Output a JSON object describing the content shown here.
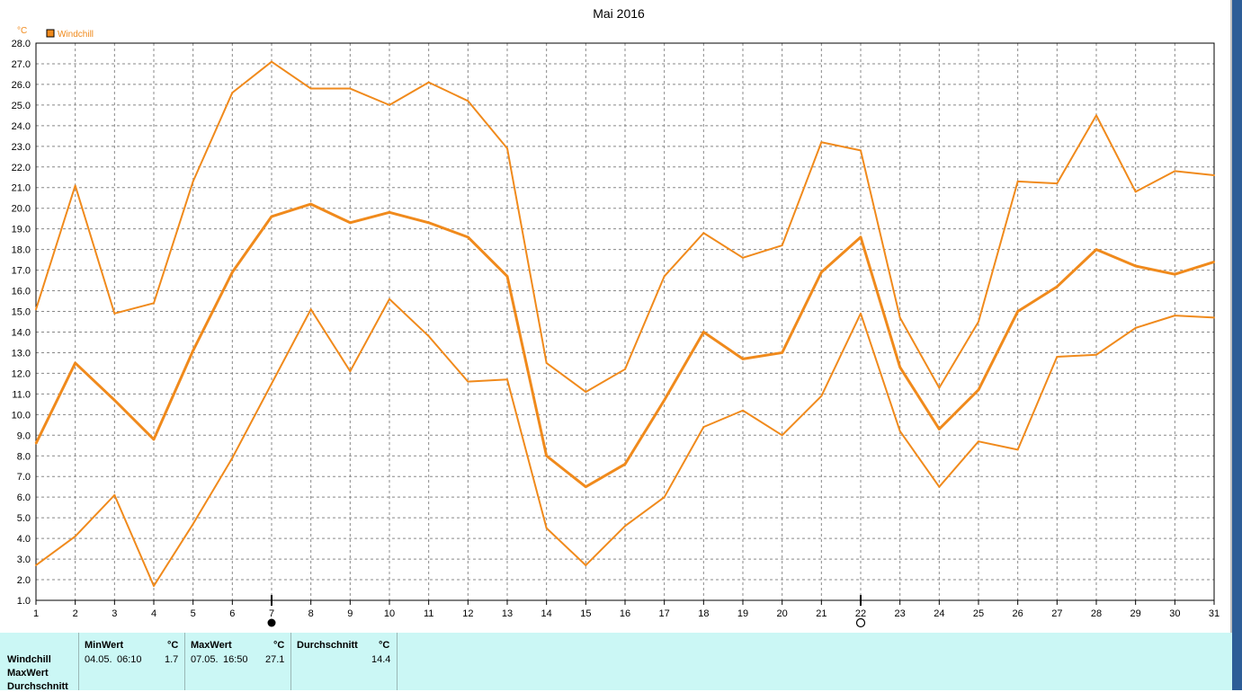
{
  "chart_data": {
    "type": "line",
    "title": "Mai 2016",
    "ylabel": "°C",
    "ylim": [
      1.0,
      28.0
    ],
    "ytick_step": 1.0,
    "grid": true,
    "legend": {
      "entries": [
        "Windchill"
      ],
      "placement": "top-left"
    },
    "x": [
      1,
      2,
      3,
      4,
      5,
      6,
      7,
      8,
      9,
      10,
      11,
      12,
      13,
      14,
      15,
      16,
      17,
      18,
      19,
      20,
      21,
      22,
      23,
      24,
      25,
      26,
      27,
      28,
      29,
      30,
      31
    ],
    "series": [
      {
        "name": "Windchill",
        "role": "max",
        "values": [
          15.1,
          21.1,
          14.9,
          15.4,
          21.3,
          25.6,
          27.1,
          25.8,
          25.8,
          25.0,
          26.1,
          25.2,
          22.9,
          12.5,
          11.1,
          12.2,
          16.7,
          18.8,
          17.6,
          18.2,
          23.2,
          22.8,
          14.7,
          11.3,
          14.5,
          21.3,
          21.2,
          24.5,
          20.8,
          21.8,
          21.6
        ]
      },
      {
        "name": "Windchill",
        "role": "average",
        "values": [
          8.6,
          12.5,
          10.7,
          8.8,
          13.1,
          16.9,
          19.6,
          20.2,
          19.3,
          19.8,
          19.3,
          18.6,
          16.7,
          8.0,
          6.5,
          7.6,
          10.7,
          14.0,
          12.7,
          13.0,
          16.9,
          18.6,
          12.3,
          9.3,
          11.2,
          15.0,
          16.2,
          18.0,
          17.2,
          16.8,
          17.4
        ]
      },
      {
        "name": "Windchill",
        "role": "min",
        "values": [
          2.7,
          4.1,
          6.1,
          1.7,
          4.7,
          7.9,
          11.5,
          15.1,
          12.1,
          15.6,
          13.8,
          11.6,
          11.7,
          4.5,
          2.7,
          4.6,
          6.0,
          9.4,
          10.2,
          9.0,
          10.9,
          14.9,
          9.2,
          6.5,
          8.7,
          8.3,
          12.8,
          12.9,
          14.2,
          14.8,
          14.7
        ]
      }
    ],
    "colors": {
      "line": "#f08a1c",
      "axis": "#000000",
      "grid": "#888888",
      "legend_box": "#f08a1c"
    },
    "moon_markers": [
      {
        "day": 7,
        "phase": "new-moon"
      },
      {
        "day": 22,
        "phase": "full-moon"
      }
    ]
  },
  "stats": {
    "row_labels": [
      "Windchill",
      "MaxWert",
      "Durchschnitt"
    ],
    "min": {
      "header": "MinWert",
      "unit": "°C",
      "date": "04.05.",
      "time": "06:10",
      "value": "1.7"
    },
    "max": {
      "header": "MaxWert",
      "unit": "°C",
      "date": "07.05.",
      "time": "16:50",
      "value": "27.1"
    },
    "avg": {
      "header": "Durchschnitt",
      "unit": "°C",
      "value": "14.4"
    }
  }
}
